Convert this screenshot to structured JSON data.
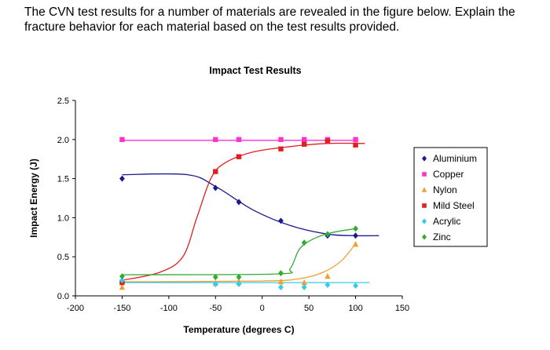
{
  "question": {
    "text": "The CVN test results for a number of materials are revealed in the figure below. Explain the fracture behavior for each material based on the test results provided."
  },
  "chart_data": {
    "type": "scatter",
    "title": "Impact Test Results",
    "xlabel": "Temperature (degrees C)",
    "ylabel": "Impact Energy (J)",
    "xlim": [
      -200,
      150
    ],
    "ylim": [
      0,
      2.5
    ],
    "x_ticks": [
      "-200",
      "-150",
      "-100",
      "-50",
      "0",
      "50",
      "100",
      "150"
    ],
    "y_ticks": [
      "0.0",
      "0.5",
      "1.0",
      "1.5",
      "2.0",
      "2.5"
    ],
    "grid": false,
    "legend_position": "right",
    "series": [
      {
        "name": "Aluminium",
        "color": "#1a1a8c",
        "marker": "diamond",
        "points": [
          [
            -150,
            1.5
          ],
          [
            -50,
            1.38
          ],
          [
            -25,
            1.2
          ],
          [
            20,
            0.96
          ],
          [
            70,
            0.77
          ],
          [
            100,
            0.77
          ]
        ],
        "trend": [
          [
            -150,
            1.55
          ],
          [
            -80,
            1.55
          ],
          [
            -50,
            1.4
          ],
          [
            -10,
            1.1
          ],
          [
            30,
            0.9
          ],
          [
            70,
            0.79
          ],
          [
            100,
            0.77
          ],
          [
            125,
            0.77
          ]
        ]
      },
      {
        "name": "Copper",
        "color": "#ff33cc",
        "marker": "square",
        "points": [
          [
            -150,
            2.0
          ],
          [
            -50,
            2.0
          ],
          [
            -25,
            2.0
          ],
          [
            20,
            2.0
          ],
          [
            45,
            2.0
          ],
          [
            70,
            2.0
          ],
          [
            100,
            2.0
          ]
        ],
        "trend": [
          [
            -150,
            1.99
          ],
          [
            100,
            1.99
          ]
        ]
      },
      {
        "name": "Nylon",
        "color": "#f0a030",
        "marker": "triangle",
        "points": [
          [
            -150,
            0.11
          ],
          [
            -50,
            0.16
          ],
          [
            -25,
            0.18
          ],
          [
            20,
            0.18
          ],
          [
            45,
            0.17
          ],
          [
            70,
            0.25
          ],
          [
            100,
            0.66
          ]
        ],
        "trend": [
          [
            -150,
            0.18
          ],
          [
            0,
            0.19
          ],
          [
            40,
            0.22
          ],
          [
            65,
            0.3
          ],
          [
            85,
            0.45
          ],
          [
            100,
            0.67
          ]
        ]
      },
      {
        "name": "Mild Steel",
        "color": "#e02020",
        "marker": "square",
        "points": [
          [
            -150,
            0.17
          ],
          [
            -50,
            1.59
          ],
          [
            -25,
            1.78
          ],
          [
            20,
            1.88
          ],
          [
            45,
            1.94
          ],
          [
            70,
            1.98
          ],
          [
            100,
            1.93
          ]
        ],
        "trend": [
          [
            -150,
            0.2
          ],
          [
            -110,
            0.3
          ],
          [
            -85,
            0.5
          ],
          [
            -70,
            1.0
          ],
          [
            -55,
            1.5
          ],
          [
            -40,
            1.7
          ],
          [
            -10,
            1.84
          ],
          [
            30,
            1.91
          ],
          [
            70,
            1.95
          ],
          [
            110,
            1.95
          ]
        ]
      },
      {
        "name": "Acrylic",
        "color": "#33ccee",
        "marker": "diamond",
        "points": [
          [
            -150,
            0.2
          ],
          [
            -50,
            0.15
          ],
          [
            -25,
            0.15
          ],
          [
            20,
            0.11
          ],
          [
            45,
            0.11
          ],
          [
            70,
            0.14
          ],
          [
            100,
            0.13
          ]
        ],
        "trend": [
          [
            -150,
            0.17
          ],
          [
            115,
            0.17
          ]
        ]
      },
      {
        "name": "Zinc",
        "color": "#33aa33",
        "marker": "diamond",
        "points": [
          [
            -150,
            0.25
          ],
          [
            -50,
            0.24
          ],
          [
            -25,
            0.24
          ],
          [
            20,
            0.29
          ],
          [
            45,
            0.68
          ],
          [
            70,
            0.79
          ],
          [
            100,
            0.86
          ]
        ],
        "trend": [
          [
            -150,
            0.27
          ],
          [
            15,
            0.28
          ],
          [
            30,
            0.35
          ],
          [
            40,
            0.6
          ],
          [
            55,
            0.73
          ],
          [
            75,
            0.81
          ],
          [
            100,
            0.86
          ]
        ]
      }
    ]
  }
}
